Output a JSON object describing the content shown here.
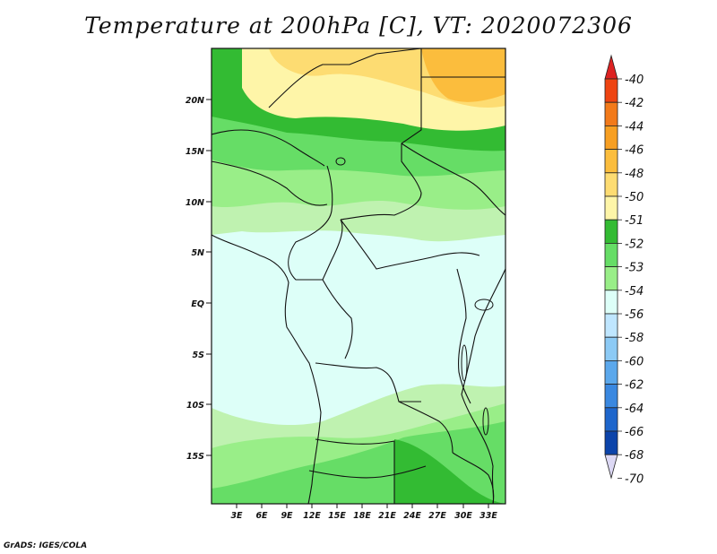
{
  "title": "Temperature at 200hPa [C], VT: 2020072306",
  "credit": "GrADS: IGES/COLA",
  "map": {
    "lat_labels": [
      "20N",
      "15N",
      "10N",
      "5N",
      "EQ",
      "5S",
      "10S",
      "15S"
    ],
    "lon_labels": [
      "3E",
      "6E",
      "9E",
      "12E",
      "15E",
      "18E",
      "21E",
      "24E",
      "27E",
      "30E",
      "33E"
    ]
  },
  "colorbar": {
    "labels": [
      "-40",
      "-42",
      "-44",
      "-46",
      "-48",
      "-50",
      "-51",
      "-52",
      "-53",
      "-54",
      "-56",
      "-58",
      "-60",
      "-62",
      "-64",
      "-66",
      "-68",
      "-70"
    ],
    "colors": [
      "#dd2222",
      "#ee4411",
      "#f27a1a",
      "#f79f22",
      "#fbbd3d",
      "#fddc72",
      "#fef5a8",
      "#33bb33",
      "#66dd66",
      "#99ee88",
      "#ddfff8",
      "#bfe6ff",
      "#8ccaf5",
      "#5ba8ec",
      "#3a88e0",
      "#1e66cc",
      "#0c44aa",
      "#021288"
    ]
  },
  "palette": {
    "orange": "#fbbd3d",
    "light_orange": "#fddc72",
    "yellow": "#fef5a8",
    "dark_green": "#33bb33",
    "green": "#66dd66",
    "light_green": "#99ee88",
    "pale_green": "#bff2b0",
    "pale_cyan": "#ddfff8"
  }
}
